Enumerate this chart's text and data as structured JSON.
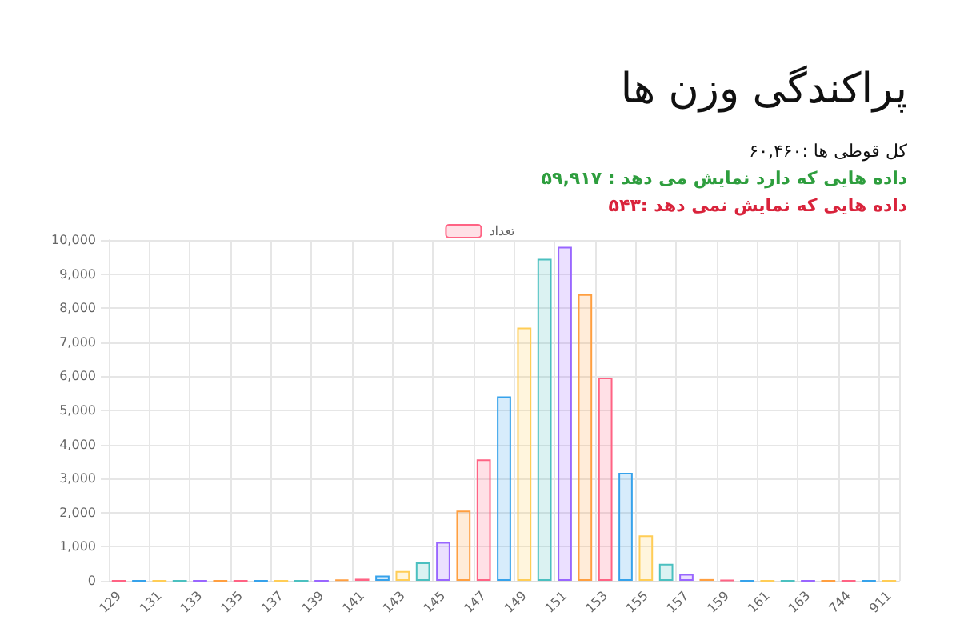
{
  "chart_data": {
    "type": "bar",
    "title": "پراکندگی وزن ها",
    "subtitle": "کل قوطی ها :۶۰,۴۶۰",
    "annotations": [
      "داده هایی که دارد نمایش می دهد : ۵۹,۹۱۷",
      "داده هایی که نمایش نمی دهد :۵۴۳"
    ],
    "categories": [
      "129",
      null,
      "131",
      null,
      "133",
      null,
      "135",
      null,
      "137",
      null,
      "139",
      null,
      "141",
      null,
      "143",
      null,
      "145",
      null,
      "147",
      null,
      "149",
      null,
      "151",
      null,
      "153",
      null,
      "155",
      null,
      "157",
      null,
      "159",
      null,
      "161",
      null,
      "163",
      null,
      "744",
      null,
      "911"
    ],
    "series": [
      {
        "name": "تعداد",
        "color": "#ff6384",
        "values": [
          0,
          0,
          0,
          0,
          0,
          0,
          0,
          0,
          0,
          0,
          0,
          30,
          60,
          150,
          290,
          540,
          1140,
          2060,
          3560,
          5410,
          7430,
          9450,
          9800,
          8410,
          5960,
          3170,
          1330,
          500,
          200,
          50,
          20,
          0,
          0,
          0,
          0,
          0,
          0,
          0,
          0
        ],
        "colors": [
          "#ff6384",
          "#36a2eb",
          "#ffcd56",
          "#4bc0c0",
          "#9966ff",
          "#ff9f40",
          "#ff6384",
          "#36a2eb",
          "#ffcd56",
          "#4bc0c0",
          "#9966ff",
          "#ff9f40",
          "#ff6384",
          "#36a2eb",
          "#ffcd56",
          "#4bc0c0",
          "#9966ff",
          "#ff9f40",
          "#ff6384",
          "#36a2eb",
          "#ffcd56",
          "#4bc0c0",
          "#9966ff",
          "#ff9f40",
          "#ff6384",
          "#36a2eb",
          "#ffcd56",
          "#4bc0c0",
          "#9966ff",
          "#ff9f40",
          "#ff6384",
          "#36a2eb",
          "#ffcd56",
          "#4bc0c0",
          "#9966ff",
          "#ff9f40",
          "#ff6384",
          "#36a2eb",
          "#ffcd56"
        ]
      }
    ],
    "ylim": [
      0,
      10000
    ],
    "yticks": [
      0,
      {
        "value": 1000,
        "label": "1,000"
      },
      {
        "value": 2000,
        "label": "2,000"
      },
      {
        "value": 3000,
        "label": "3,000"
      },
      {
        "value": 4000,
        "label": "4,000"
      },
      {
        "value": 5000,
        "label": "5,000"
      },
      {
        "value": 6000,
        "label": "6,000"
      },
      {
        "value": 7000,
        "label": "7,000"
      },
      {
        "value": 8000,
        "label": "8,000"
      },
      {
        "value": 9000,
        "label": "9,000"
      },
      {
        "value": 10000,
        "label": "10,000"
      }
    ],
    "grid": true,
    "legend": "top"
  }
}
